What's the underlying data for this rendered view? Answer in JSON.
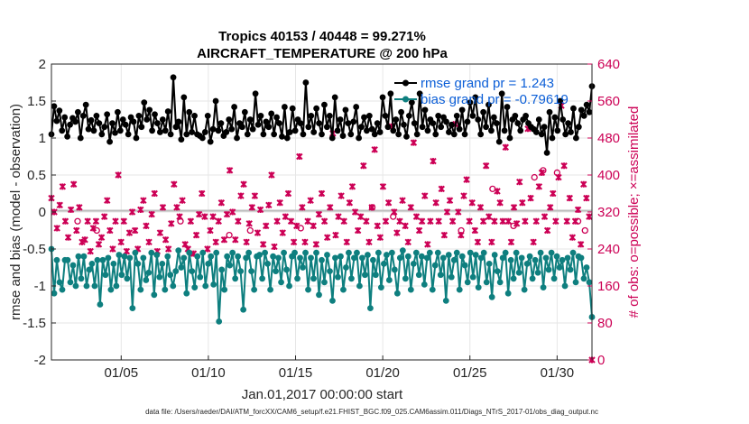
{
  "chart_data": {
    "type": "line",
    "title_line1": "Tropics 40153 / 40448 = 99.271%",
    "title_line2": "AIRCRAFT_TEMPERATURE @ 200 hPa",
    "xlabel": "Jan.01,2017 00:00:00 start",
    "ylabel": "rmse and bias (model - observation)",
    "ylabel_right": "# of obs: o=possible; ×=assimilated",
    "ylim": [
      -2,
      2
    ],
    "ylim_right": [
      0,
      640
    ],
    "y_ticks": [
      "-2",
      "-1.5",
      "-1",
      "-0.5",
      "0",
      "0.5",
      "1",
      "1.5",
      "2"
    ],
    "y_right_ticks": [
      "0",
      "80",
      "160",
      "240",
      "320",
      "400",
      "480",
      "560",
      "640"
    ],
    "x_ticks": [
      "01/05",
      "01/10",
      "01/15",
      "01/20",
      "01/25",
      "01/30"
    ],
    "x_tick_days": [
      5,
      10,
      15,
      20,
      25,
      30
    ],
    "x_range_days": [
      1.0,
      32.0
    ],
    "footer": "data file: /Users/raeder/DAI/ATM_forcXX/CAM6_setup/f.e21.FHIST_BGC.f09_025.CAM6assim.011/Diags_NTrS_2017-01/obs_diag_output.nc",
    "series": [
      {
        "name": "rmse grand pr = 1.243",
        "color": "#000000",
        "values": [
          1.05,
          1.43,
          1.23,
          1.37,
          1.1,
          1.28,
          1.02,
          1.18,
          1.27,
          1.22,
          1.35,
          1.0,
          1.3,
          1.45,
          1.12,
          1.24,
          1.1,
          1.3,
          1.2,
          1.05,
          1.15,
          1.32,
          0.95,
          1.2,
          1.07,
          1.35,
          1.1,
          1.25,
          1.18,
          1.05,
          1.28,
          1.22,
          1.0,
          1.3,
          1.15,
          1.48,
          1.25,
          1.38,
          1.1,
          1.32,
          1.2,
          1.08,
          1.25,
          1.1,
          1.36,
          1.05,
          1.82,
          1.15,
          1.22,
          0.98,
          1.55,
          1.05,
          1.35,
          1.08,
          1.3,
          1.05,
          1.03,
          1.0,
          1.08,
          1.3,
          0.95,
          1.12,
          1.5,
          1.1,
          1.2,
          1.03,
          1.08,
          1.25,
          1.12,
          1.42,
          1.0,
          1.2,
          1.15,
          1.35,
          1.05,
          1.25,
          1.12,
          1.6,
          1.18,
          1.3,
          1.05,
          1.22,
          1.15,
          1.33,
          1.05,
          1.28,
          1.2,
          1.02,
          1.42,
          1.0,
          1.08,
          1.4,
          1.1,
          1.25,
          1.2,
          1.05,
          1.75,
          1.15,
          1.3,
          1.08,
          1.4,
          1.2,
          1.05,
          1.45,
          1.15,
          1.3,
          1.0,
          1.55,
          1.1,
          1.25,
          1.03,
          1.38,
          1.2,
          1.05,
          1.22,
          1.42,
          1.0,
          1.15,
          1.28,
          1.1,
          1.3,
          1.12,
          1.05,
          1.2,
          1.08,
          1.55,
          1.3,
          1.15,
          1.6,
          1.1,
          1.25,
          1.05,
          1.35,
          1.18,
          1.02,
          1.3,
          1.48,
          1.2,
          1.05,
          1.6,
          1.15,
          1.38,
          1.1,
          1.25,
          1.2,
          1.05,
          1.3,
          1.15,
          1.28,
          1.22,
          1.08,
          1.18,
          1.05,
          1.3,
          1.12,
          1.38,
          1.05,
          1.22,
          1.48,
          1.3,
          1.55,
          1.25,
          1.05,
          1.35,
          1.15,
          1.45,
          1.1,
          1.28,
          1.2,
          0.95,
          1.6,
          1.1,
          1.42,
          1.0,
          1.25,
          1.3,
          1.2,
          1.1,
          1.25,
          1.3,
          1.2,
          1.15,
          1.12,
          1.08,
          1.25,
          1.05,
          1.15,
          0.8,
          1.35,
          1.0,
          1.28,
          1.1,
          1.5,
          1.25,
          1.05,
          1.2,
          1.08,
          1.4,
          1.0,
          1.15,
          1.38,
          1.3,
          1.45,
          1.35,
          1.7
        ],
        "grand": 1.243
      },
      {
        "name": "bias grand pr = -0.79619",
        "color": "#0e7f7f",
        "values": [
          -0.5,
          -1.1,
          -0.65,
          -0.95,
          -1.05,
          -0.65,
          -0.65,
          -0.95,
          -0.72,
          -1.0,
          -0.6,
          -0.9,
          -0.6,
          -1.0,
          -0.78,
          -0.7,
          -1.0,
          -0.65,
          -1.25,
          -0.65,
          -0.85,
          -0.62,
          -1.05,
          -0.7,
          -1.0,
          -0.58,
          -0.85,
          -0.6,
          -0.9,
          -0.62,
          -1.3,
          -0.55,
          -0.7,
          -1.05,
          -0.62,
          -0.92,
          -0.82,
          -0.55,
          -1.12,
          -0.58,
          -0.88,
          -0.7,
          -1.05,
          -0.6,
          -0.85,
          -1.0,
          -0.8,
          -0.52,
          -0.75,
          -0.62,
          -1.1,
          -0.55,
          -0.8,
          -1.02,
          -0.6,
          -0.88,
          -0.55,
          -1.0,
          -0.7,
          -0.6,
          -0.98,
          -0.55,
          -1.48,
          -0.78,
          -1.05,
          -0.6,
          -0.72,
          -0.55,
          -0.9,
          -0.6,
          -0.8,
          -1.32,
          -0.62,
          -0.55,
          -0.8,
          -1.05,
          -0.6,
          -0.58,
          -0.9,
          -0.55,
          -0.7,
          -1.05,
          -0.6,
          -0.8,
          -0.62,
          -0.95,
          -0.55,
          -0.78,
          -1.0,
          -0.6,
          -0.55,
          -0.9,
          -0.62,
          -0.75,
          -0.55,
          -1.05,
          -0.62,
          -0.9,
          -0.55,
          -1.12,
          -0.65,
          -0.95,
          -0.58,
          -0.8,
          -1.2,
          -0.62,
          -0.88,
          -0.6,
          -1.05,
          -0.75,
          -0.55,
          -0.9,
          -0.62,
          -0.55,
          -1.0,
          -0.62,
          -0.85,
          -0.58,
          -1.3,
          -0.65,
          -0.85,
          -0.55,
          -1.02,
          -0.7,
          -0.58,
          -0.92,
          -0.55,
          -0.78,
          -1.1,
          -0.62,
          -0.52,
          -0.9,
          -0.6,
          -1.05,
          -0.7,
          -0.55,
          -0.85,
          -0.6,
          -0.98,
          -0.62,
          -0.55,
          -1.05,
          -0.72,
          -0.55,
          -0.85,
          -0.62,
          -1.2,
          -0.58,
          -0.88,
          -0.65,
          -0.55,
          -1.05,
          -0.6,
          -0.72,
          -0.95,
          -0.55,
          -0.88,
          -0.58,
          -1.02,
          -0.62,
          -0.55,
          -0.95,
          -0.7,
          -1.15,
          -0.58,
          -0.8,
          -0.95,
          -0.62,
          -0.55,
          -1.1,
          -0.65,
          -0.9,
          -0.55,
          -0.82,
          -0.62,
          -1.05,
          -0.7,
          -0.6,
          -0.9,
          -0.65,
          -0.82,
          -0.55,
          -1.02,
          -0.62,
          -0.78,
          -0.55,
          -0.9,
          -0.6,
          -0.75,
          -0.65,
          -1.0,
          -0.62,
          -0.78,
          -0.55,
          -0.95,
          -0.6,
          -0.62,
          -0.9,
          -0.75,
          -0.95,
          -1.42
        ]
      }
    ],
    "counts": {
      "name": "# of obs",
      "color": "#cc0055",
      "values": [
        350,
        320,
        285,
        335,
        375,
        300,
        265,
        325,
        380,
        280,
        330,
        255,
        260,
        300,
        235,
        285,
        300,
        250,
        265,
        310,
        345,
        280,
        240,
        300,
        400,
        255,
        300,
        235,
        275,
        320,
        280,
        240,
        325,
        345,
        290,
        255,
        315,
        360,
        235,
        275,
        330,
        260,
        240,
        295,
        380,
        330,
        310,
        345,
        250,
        240,
        300,
        230,
        270,
        315,
        360,
        310,
        240,
        280,
        310,
        255,
        300,
        340,
        260,
        315,
        410,
        320,
        260,
        300,
        355,
        380,
        255,
        295,
        330,
        355,
        275,
        325,
        250,
        290,
        335,
        400,
        245,
        300,
        340,
        275,
        310,
        360,
        300,
        255,
        290,
        440,
        330,
        255,
        300,
        345,
        290,
        250,
        315,
        360,
        300,
        265,
        330,
        490,
        270,
        310,
        355,
        300,
        255,
        340,
        375,
        320,
        280,
        310,
        420,
        300,
        255,
        330,
        455,
        290,
        265,
        375,
        300,
        340,
        505,
        320,
        275,
        300,
        345,
        290,
        255,
        330,
        470,
        310,
        280,
        300,
        355,
        250,
        300,
        430,
        340,
        300,
        370,
        270,
        320,
        345,
        300,
        510,
        320,
        270,
        355,
        390,
        300,
        340,
        280,
        255,
        330,
        300,
        420,
        310,
        255,
        300,
        365,
        340,
        300,
        460,
        300,
        255,
        330,
        295,
        385,
        340,
        300,
        500,
        350,
        255,
        300,
        375,
        405,
        310,
        280,
        330,
        360,
        300,
        395,
        550,
        420,
        300,
        350,
        265,
        300,
        325,
        250,
        380,
        350,
        310,
        0
      ],
      "possible_markers": [
        {
          "day": 2.5,
          "count": 300
        },
        {
          "day": 3.6,
          "count": 280
        },
        {
          "day": 8.4,
          "count": 300
        },
        {
          "day": 11.2,
          "count": 270
        },
        {
          "day": 12.4,
          "count": 280
        },
        {
          "day": 15.3,
          "count": 285
        },
        {
          "day": 19.4,
          "count": 330
        },
        {
          "day": 20.6,
          "count": 310
        },
        {
          "day": 24.5,
          "count": 280
        },
        {
          "day": 26.3,
          "count": 370
        },
        {
          "day": 27.5,
          "count": 290
        },
        {
          "day": 28.7,
          "count": 395
        },
        {
          "day": 29.2,
          "count": 410
        },
        {
          "day": 30.0,
          "count": 405
        },
        {
          "day": 31.2,
          "count": 300
        },
        {
          "day": 31.6,
          "count": 280
        }
      ]
    }
  }
}
